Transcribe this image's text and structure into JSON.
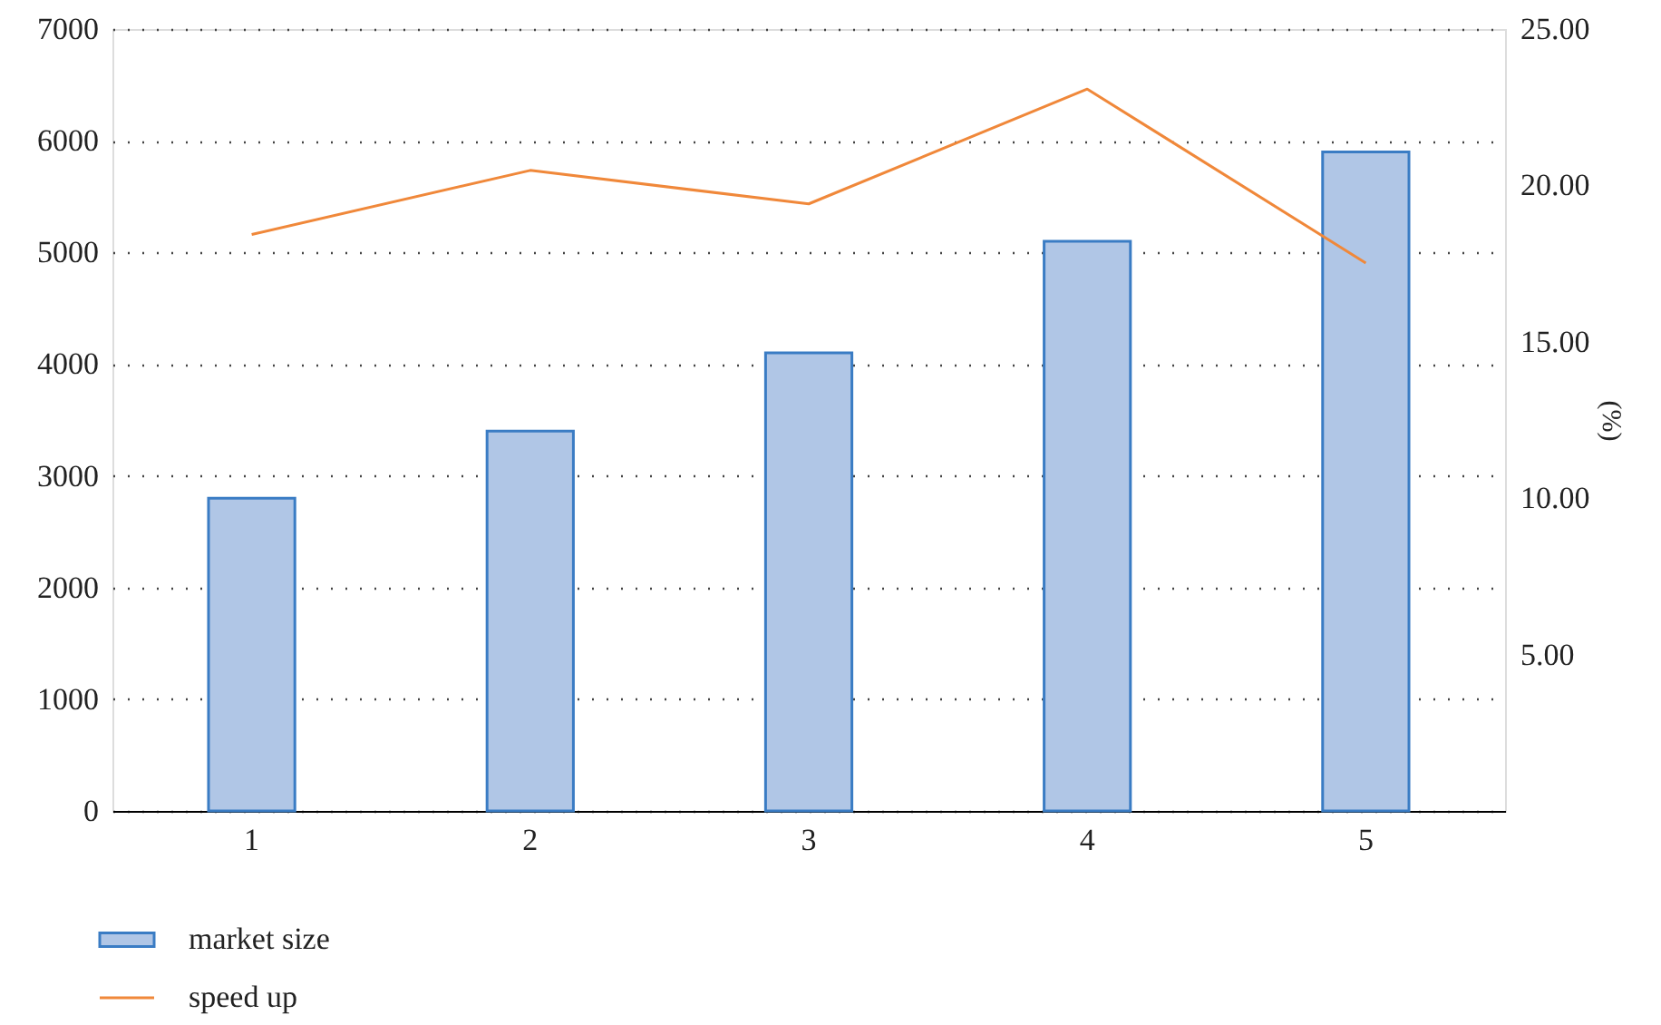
{
  "chart_data": {
    "type": "bar",
    "categories": [
      "1",
      "2",
      "3",
      "4",
      "5"
    ],
    "series": [
      {
        "name": "market size",
        "color": "#b0c6e6",
        "values": [
          2800,
          3400,
          4100,
          5100,
          5900
        ]
      },
      {
        "name": "speed up",
        "type": "line",
        "axis": "y2",
        "color": "#f0883a",
        "values": [
          18.43,
          20.48,
          19.41,
          23.08,
          17.52
        ]
      }
    ],
    "ylim": [
      0,
      7000
    ],
    "yticks": [
      0,
      1000,
      2000,
      3000,
      4000,
      5000,
      6000,
      7000
    ],
    "y2lim": [
      0,
      25
    ],
    "y2ticks": [
      {
        "value": 5,
        "label": "5.00"
      },
      {
        "value": 10,
        "label": "10.00"
      },
      {
        "value": 15,
        "label": "15.00"
      },
      {
        "value": 20,
        "label": "20.00"
      },
      {
        "value": 25,
        "label": "25.00"
      }
    ],
    "y2label": "(%)",
    "grid": "y",
    "legend": "bottom left"
  }
}
